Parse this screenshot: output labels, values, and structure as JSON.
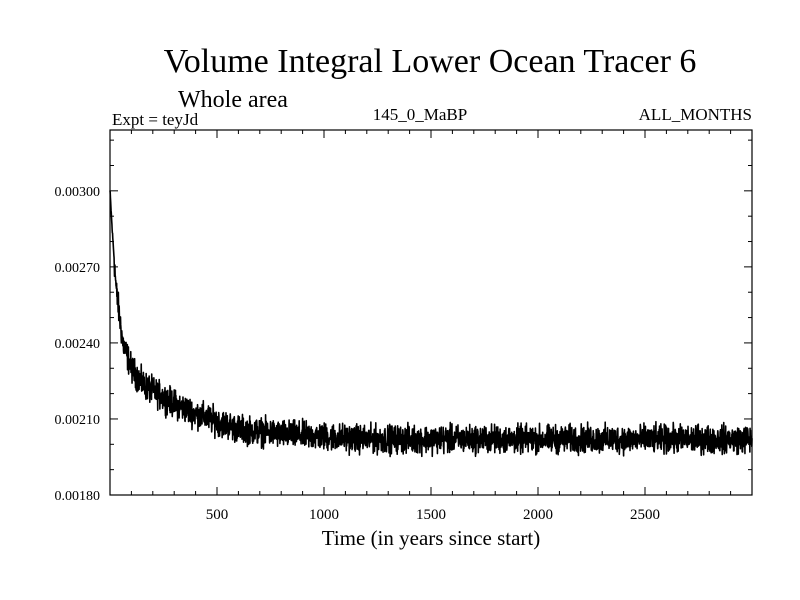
{
  "chart_data": {
    "type": "line",
    "title": "Volume Integral Lower Ocean Tracer 6",
    "subtitle": "Whole area",
    "experiment_label": "Expt = teyJd",
    "period_label": "145_0_MaBP",
    "months_label": "ALL_MONTHS",
    "xlabel": "Time (in years since start)",
    "ylabel": "",
    "xlim": [
      0,
      3000
    ],
    "ylim": [
      0.0018,
      0.00324
    ],
    "x_ticks": [
      500,
      1000,
      1500,
      2000,
      2500
    ],
    "x_tick_labels": [
      "500",
      "1000",
      "1500",
      "2000",
      "2500"
    ],
    "y_ticks": [
      0.0018,
      0.0021,
      0.0024,
      0.0027,
      0.003
    ],
    "y_tick_labels": [
      "0.00180",
      "0.00210",
      "0.00240",
      "0.00270",
      "0.00300"
    ],
    "grid": false,
    "series": [
      {
        "name": "Volume Integral Lower Ocean Tracer 6",
        "trend": {
          "x": [
            0,
            10,
            30,
            60,
            100,
            150,
            200,
            300,
            400,
            500,
            600,
            700,
            800,
            1000,
            1200,
            1400,
            1600,
            1800,
            2000,
            2200,
            2400,
            2600,
            2800,
            3000
          ],
          "y": [
            0.003,
            0.00285,
            0.0026,
            0.0024,
            0.0023,
            0.00224,
            0.00221,
            0.00216,
            0.00212,
            0.00209,
            0.00206,
            0.00205,
            0.00204,
            0.00203,
            0.00202,
            0.00202,
            0.00202,
            0.00202,
            0.00202,
            0.00202,
            0.00202,
            0.00202,
            0.00202,
            0.00202
          ]
        },
        "noise_amplitude": 8e-05
      }
    ]
  }
}
